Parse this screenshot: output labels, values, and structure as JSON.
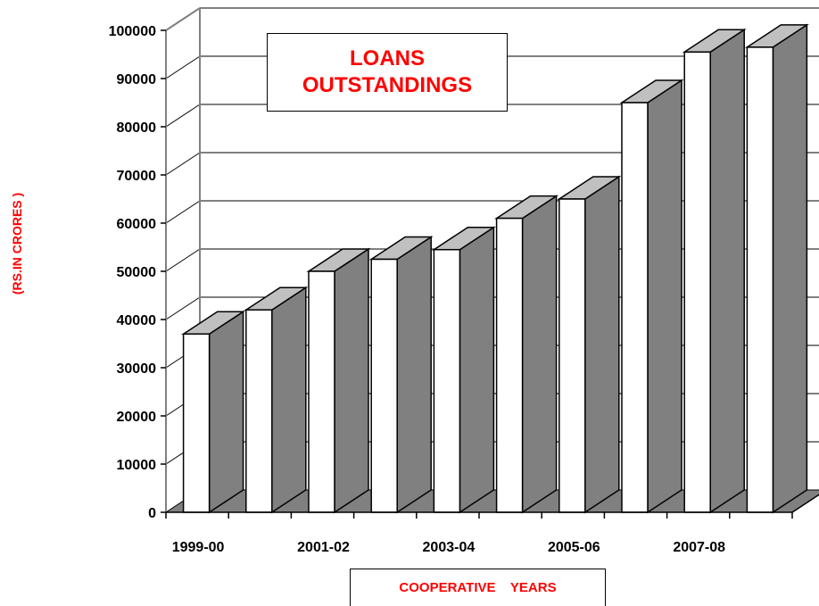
{
  "chart_data": {
    "type": "bar",
    "title": "LOANS\nOUTSTANDINGS",
    "xlabel": "COOPERATIVE    YEARS",
    "ylabel": "(RS.IN CRORES )",
    "ylim": [
      0,
      100000
    ],
    "yticks": [
      0,
      10000,
      20000,
      30000,
      40000,
      50000,
      60000,
      70000,
      80000,
      90000,
      100000
    ],
    "xtick_labels": [
      "1999-00",
      "",
      "2001-02",
      "",
      "2003-04",
      "",
      "2005-06",
      "",
      "2007-08",
      ""
    ],
    "values": [
      37000,
      42000,
      50000,
      52500,
      54500,
      61000,
      65000,
      85000,
      95500,
      96500
    ],
    "grid": true,
    "style": "3d",
    "colors": {
      "bar_front": "#ffffff",
      "bar_side": "#808080",
      "bar_top": "#c0c0c0",
      "outline": "#000000",
      "title": "#ff0000"
    }
  }
}
